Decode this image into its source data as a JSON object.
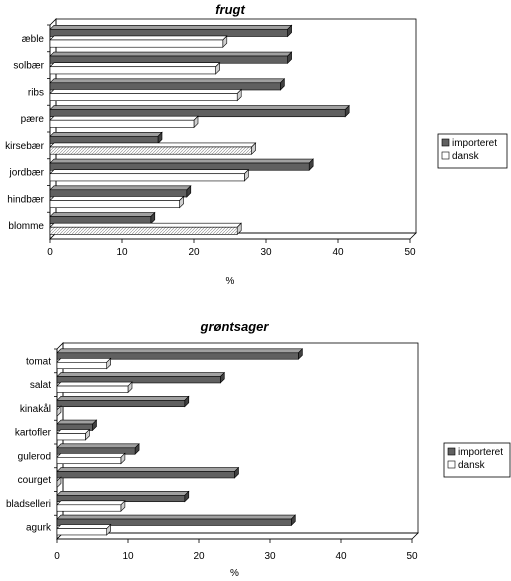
{
  "chart_data": [
    {
      "type": "bar",
      "orientation": "horizontal",
      "title": "frugt",
      "xlabel": "%",
      "xlim": [
        0,
        50
      ],
      "xticks": [
        0,
        10,
        20,
        30,
        40,
        50
      ],
      "categories": [
        "æble",
        "solbær",
        "ribs",
        "pære",
        "kirsebær",
        "jordbær",
        "hindbær",
        "blomme"
      ],
      "series": [
        {
          "name": "importeret",
          "color": "#606060",
          "values": [
            33,
            33,
            32,
            41,
            15,
            36,
            19,
            14
          ]
        },
        {
          "name": "dansk",
          "color": "#ffffff",
          "values": [
            24,
            23,
            26,
            20,
            28,
            27,
            18,
            26
          ]
        }
      ],
      "legend_position": "right"
    },
    {
      "type": "bar",
      "orientation": "horizontal",
      "title": "grøntsager",
      "xlabel": "%",
      "xlim": [
        0,
        50
      ],
      "xticks": [
        0,
        10,
        20,
        30,
        40,
        50
      ],
      "categories": [
        "tomat",
        "salat",
        "kinakål",
        "kartofler",
        "gulerod",
        "courget",
        "bladselleri",
        "agurk"
      ],
      "series": [
        {
          "name": "importeret",
          "color": "#606060",
          "values": [
            34,
            23,
            18,
            5,
            11,
            25,
            18,
            33
          ]
        },
        {
          "name": "dansk",
          "color": "#ffffff",
          "values": [
            7,
            10,
            0,
            4,
            9,
            0,
            9,
            7
          ]
        }
      ],
      "legend_position": "right"
    }
  ]
}
